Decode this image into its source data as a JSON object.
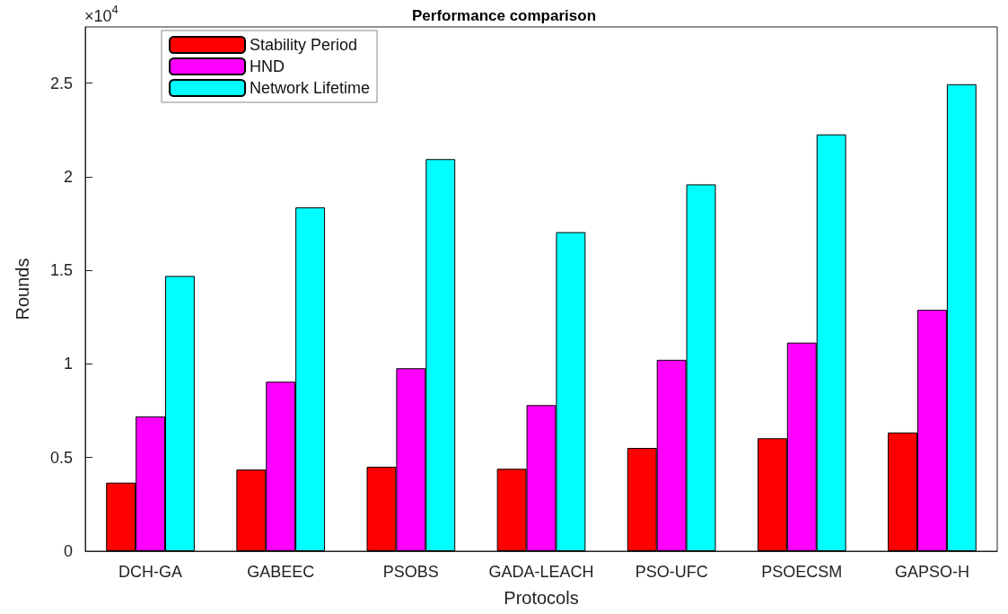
{
  "chart_data": {
    "type": "bar",
    "title": "Performance comparison",
    "xlabel": "Protocols",
    "ylabel": "Rounds",
    "categories": [
      "DCH-GA",
      "GABEEC",
      "PSOBS",
      "GADA-LEACH",
      "PSO-UFC",
      "PSOECSM",
      "GAPSO-H"
    ],
    "series": [
      {
        "name": "Stability Period",
        "color": "#ff0000",
        "values": [
          0.366,
          0.436,
          0.451,
          0.44,
          0.551,
          0.603,
          0.634
        ]
      },
      {
        "name": "HND",
        "color": "#ff00ff",
        "values": [
          0.72,
          0.905,
          0.977,
          0.78,
          1.022,
          1.114,
          1.289
        ]
      },
      {
        "name": "Network Lifetime",
        "color": "#00ffff",
        "values": [
          1.47,
          1.836,
          2.094,
          1.704,
          1.959,
          2.226,
          2.494
        ]
      }
    ],
    "ylim": [
      0,
      2.8
    ],
    "yticks": [
      0,
      0.5,
      1,
      1.5,
      2,
      2.5
    ],
    "annotations": [
      "×10$^{4}$"
    ],
    "legend": "top left",
    "grid": false
  }
}
